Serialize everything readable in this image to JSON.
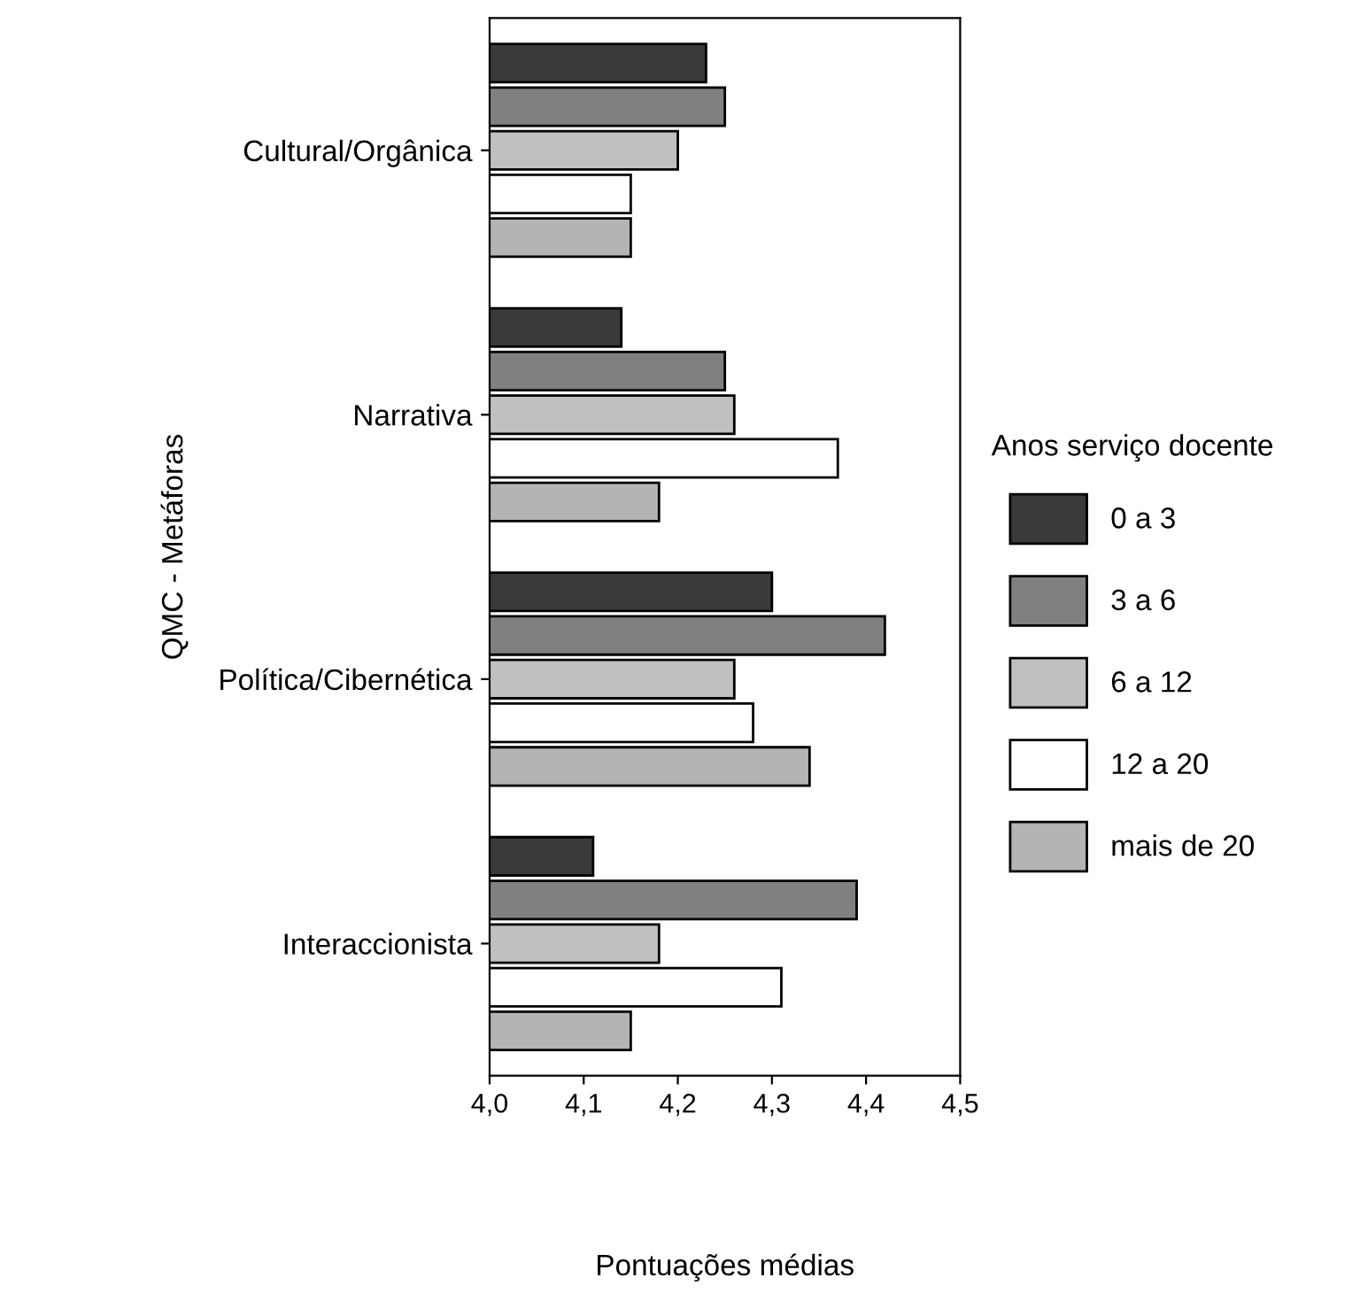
{
  "chart_data": {
    "type": "bar",
    "orientation": "horizontal",
    "xlabel": "Pontuações médias",
    "ylabel": "QMC - Metáforas",
    "legend_title": "Anos serviço docente",
    "categories": [
      "Cultural/Orgânica",
      "Narrativa",
      "Política/Cibernética",
      "Interaccionista"
    ],
    "series": [
      {
        "name": "0 a 3",
        "color": "#3a3a3a",
        "values": [
          4.23,
          4.14,
          4.3,
          4.11
        ]
      },
      {
        "name": "3 a 6",
        "color": "#808080",
        "values": [
          4.25,
          4.25,
          4.42,
          4.39
        ]
      },
      {
        "name": "6 a 12",
        "color": "#c0c0c0",
        "values": [
          4.2,
          4.26,
          4.26,
          4.18
        ]
      },
      {
        "name": "12 a 20",
        "color": "#ffffff",
        "values": [
          4.15,
          4.37,
          4.28,
          4.31
        ]
      },
      {
        "name": "mais de 20",
        "color": "#b4b4b4",
        "values": [
          4.15,
          4.18,
          4.34,
          4.15
        ]
      }
    ],
    "xlim": [
      4.0,
      4.5
    ],
    "xticks": [
      {
        "value": 4.0,
        "label": "4,0"
      },
      {
        "value": 4.1,
        "label": "4,1"
      },
      {
        "value": 4.2,
        "label": "4,2"
      },
      {
        "value": 4.3,
        "label": "4,3"
      },
      {
        "value": 4.4,
        "label": "4,4"
      },
      {
        "value": 4.5,
        "label": "4,5"
      }
    ],
    "legend": "right",
    "grid": false
  }
}
